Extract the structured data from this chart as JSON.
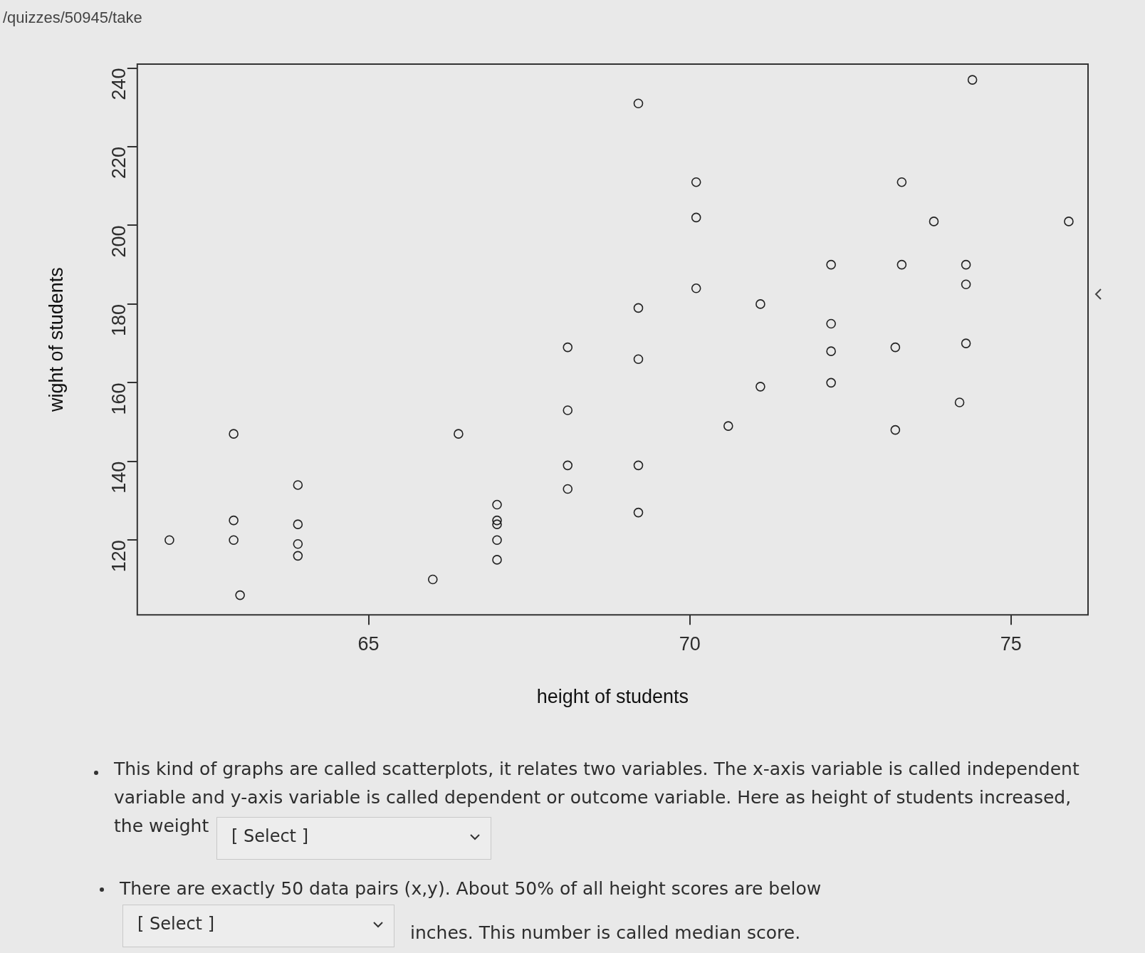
{
  "chart_data": {
    "type": "scatter",
    "xlabel": "height of students",
    "ylabel": "wight of students",
    "color": "#222222",
    "marker": "circle",
    "grid": false,
    "xlim": [
      61.4,
      76.2
    ],
    "ylim": [
      101,
      241
    ],
    "xticks": [
      65,
      70,
      75
    ],
    "yticks": [
      120,
      140,
      160,
      180,
      200,
      220,
      240
    ],
    "x": [
      61.9,
      62.9,
      62.9,
      62.9,
      63.0,
      63.9,
      63.9,
      63.9,
      63.9,
      66.0,
      66.4,
      67.0,
      67.0,
      67.0,
      67.0,
      67.0,
      68.1,
      68.1,
      68.1,
      68.1,
      69.2,
      69.2,
      69.2,
      69.2,
      69.2,
      70.1,
      70.1,
      70.1,
      70.6,
      71.1,
      71.1,
      72.2,
      72.2,
      72.2,
      72.2,
      73.3,
      73.3,
      73.2,
      73.2,
      73.8,
      74.3,
      74.3,
      74.3,
      74.2,
      74.4,
      75.9
    ],
    "values": [
      120,
      147,
      125,
      120,
      106,
      134,
      124,
      119,
      116,
      110,
      147,
      129,
      125,
      124,
      120,
      115,
      169,
      153,
      139,
      133,
      231,
      179,
      166,
      139,
      127,
      211,
      202,
      184,
      149,
      180,
      159,
      190,
      175,
      168,
      160,
      211,
      190,
      169,
      148,
      201,
      190,
      185,
      170,
      155,
      237,
      201
    ],
    "annotations": [
      "/quizzes/50945/take",
      "This kind of graphs are called scatterplots, it relates two variables.  The x-axis variable is called independent variable and y-axis variable is called dependent or outcome variable. Here as height of students increased, the weight",
      "[ Select ]",
      "There are exactly 50 data pairs (x,y). About 50% of all height scores are below",
      "[ Select ]",
      "inches. This number is called median score."
    ]
  }
}
